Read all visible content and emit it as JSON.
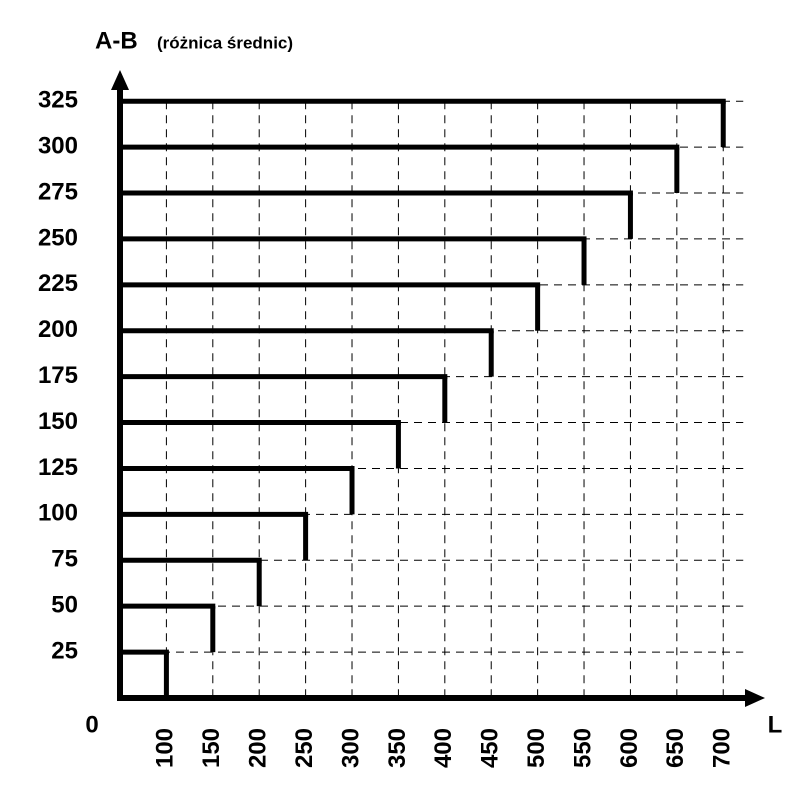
{
  "chart_data": {
    "type": "step",
    "y_label": "A-B",
    "y_label_note": "(różnica średnic)",
    "x_label": "L",
    "origin_label": "0",
    "x": [
      100,
      150,
      200,
      250,
      300,
      350,
      400,
      450,
      500,
      550,
      600,
      650,
      700
    ],
    "values": [
      25,
      50,
      75,
      100,
      125,
      150,
      175,
      200,
      225,
      250,
      275,
      300,
      325
    ],
    "color": "#000000",
    "xlim": [
      50,
      745
    ],
    "ylim": [
      0,
      342
    ],
    "xticks": [
      100,
      150,
      200,
      250,
      300,
      350,
      400,
      450,
      500,
      550,
      600,
      650,
      700
    ],
    "yticks": [
      25,
      50,
      75,
      100,
      125,
      150,
      175,
      200,
      225,
      250,
      275,
      300,
      325
    ],
    "grid": true
  }
}
